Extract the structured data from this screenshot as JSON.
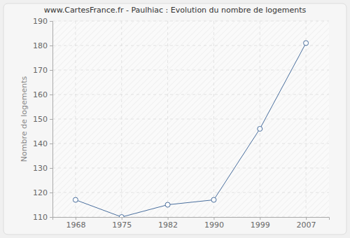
{
  "chart_data": {
    "type": "line",
    "title": "www.CartesFrance.fr - Paulhiac : Evolution du nombre de logements",
    "y_label": "Nombre de logements",
    "categories": [
      "1968",
      "1975",
      "1982",
      "1990",
      "1999",
      "2007"
    ],
    "values": [
      117,
      110,
      115,
      117,
      146,
      181
    ],
    "color": "#4a6f9e",
    "marker": "circle",
    "ylim": [
      110,
      190
    ],
    "yticks": [
      110,
      120,
      130,
      140,
      150,
      160,
      170,
      180,
      190
    ],
    "grid": true
  }
}
